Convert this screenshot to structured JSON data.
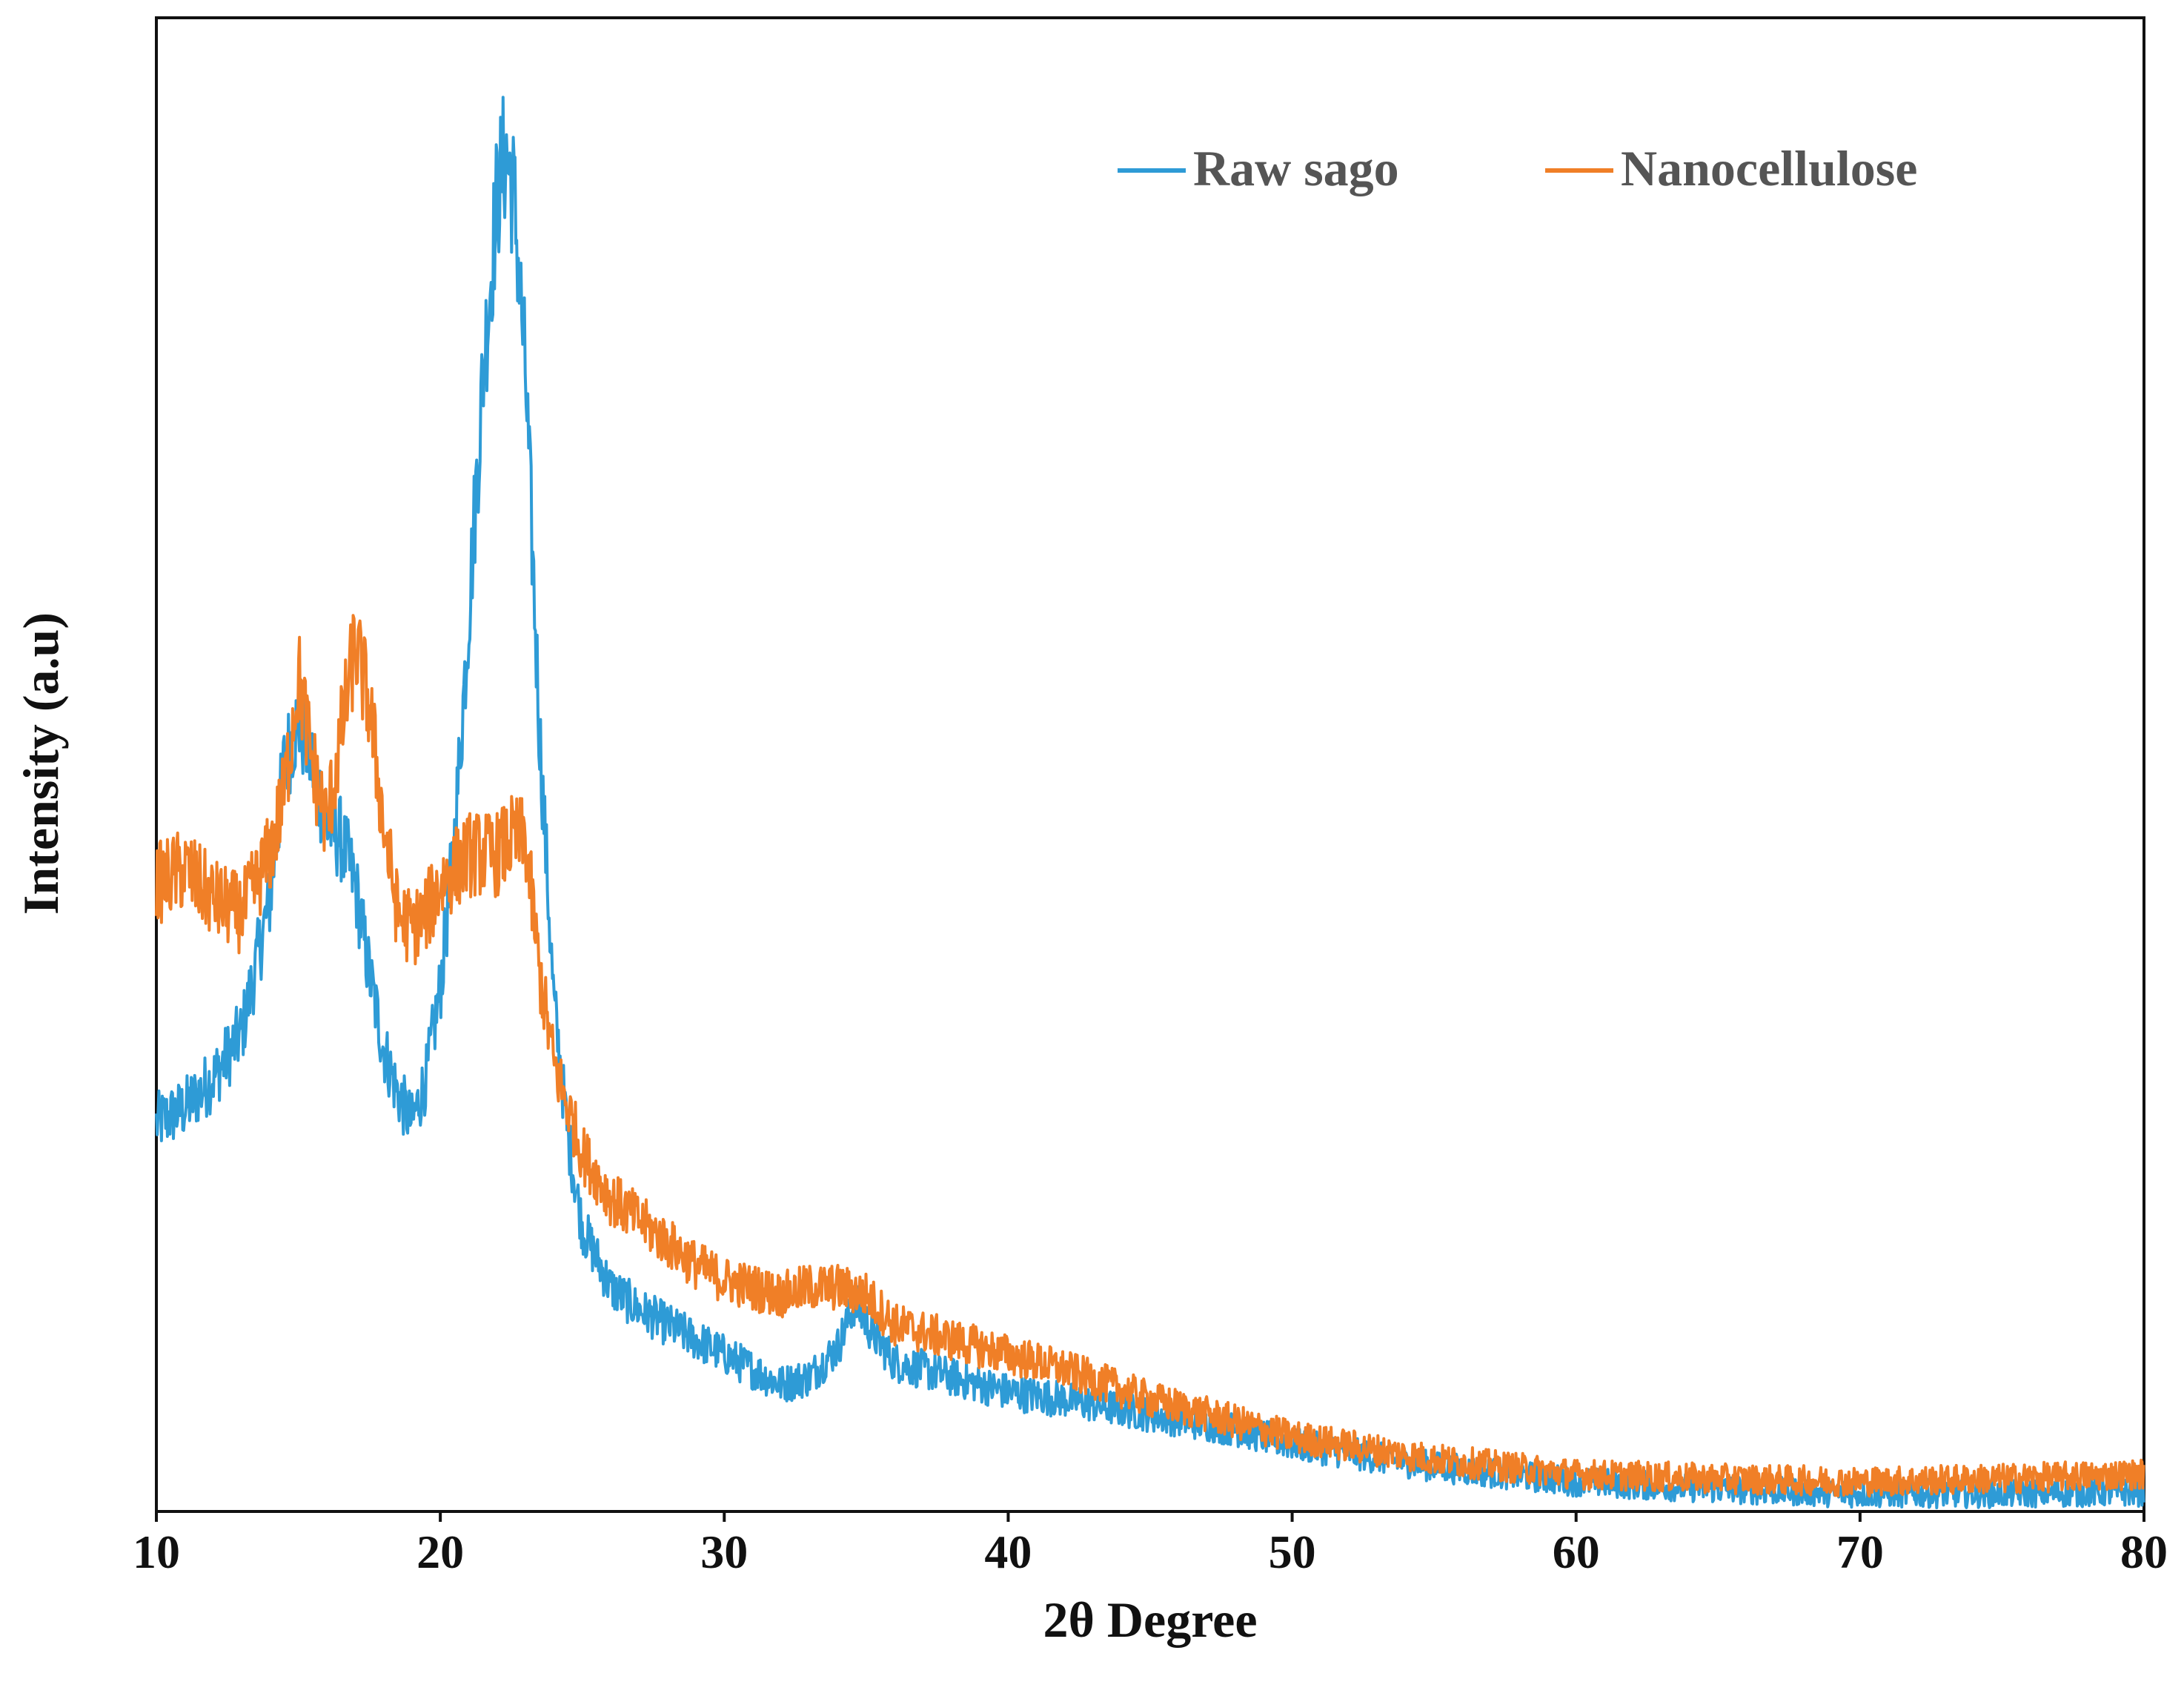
{
  "chart_data": {
    "type": "line",
    "title": "",
    "xlabel": "2θ Degree",
    "ylabel": "Intensity (a.u)",
    "xlim": [
      10,
      80
    ],
    "ylim": [
      0,
      100
    ],
    "xticks": [
      10,
      20,
      30,
      40,
      50,
      60,
      70,
      80
    ],
    "x_tick_labels": [
      "10",
      "20",
      "30",
      "40",
      "50",
      "60",
      "70",
      "80"
    ],
    "y_tick_labels_shown": false,
    "grid": false,
    "legend_position": "top-right",
    "series": [
      {
        "name": "Raw sago",
        "color": "#2e9bd6",
        "x": [
          10,
          11,
          12,
          13,
          14,
          14.5,
          15,
          15.5,
          16,
          16.5,
          17,
          17.5,
          18,
          18.5,
          19,
          19.5,
          20,
          20.5,
          21,
          21.5,
          22,
          22.3,
          22.6,
          23,
          23.5,
          24,
          24.5,
          25,
          26,
          27,
          28,
          29,
          30,
          31,
          32,
          33,
          34,
          34.6,
          35.2,
          36,
          38,
          40,
          42,
          45,
          48,
          50,
          55,
          60,
          65,
          70,
          75,
          80
        ],
        "y": [
          26,
          27,
          29,
          32,
          41,
          50,
          53,
          50,
          46,
          45,
          42,
          36,
          31,
          28,
          26,
          29,
          35,
          45,
          60,
          76,
          88,
          91,
          88,
          76,
          52,
          34,
          25,
          19,
          15,
          13.5,
          12.5,
          11.5,
          10.5,
          9.5,
          8.5,
          9,
          11,
          14,
          12,
          10,
          9,
          8,
          7.5,
          6.5,
          5.5,
          4.5,
          3,
          2,
          1.5,
          1.2,
          1.2,
          1.3
        ]
      },
      {
        "name": "Nanocellulose",
        "color": "#f07f27",
        "x": [
          10,
          11,
          12,
          13,
          14,
          14.5,
          15,
          15.5,
          16,
          16.5,
          17,
          17.5,
          18,
          18.5,
          19,
          19.5,
          20,
          21,
          22,
          22.5,
          23,
          23.5,
          24,
          25,
          26,
          27,
          28,
          29,
          30,
          31,
          32,
          33,
          34,
          35,
          36,
          38,
          40,
          42,
          45,
          48,
          50,
          55,
          60,
          65,
          70,
          75,
          80
        ],
        "y": [
          42,
          43,
          41,
          40,
          44,
          48,
          56,
          50,
          46,
          52,
          58,
          54,
          46,
          40,
          39,
          40,
          42,
          44,
          44,
          45,
          45,
          36,
          30,
          24,
          21,
          19.5,
          18,
          16.5,
          15.5,
          15,
          14.5,
          15,
          15,
          14.5,
          12.5,
          11.5,
          10.5,
          9.5,
          7.5,
          6,
          5,
          3.5,
          2.5,
          2.2,
          2,
          2.2,
          2.5
        ]
      }
    ]
  }
}
